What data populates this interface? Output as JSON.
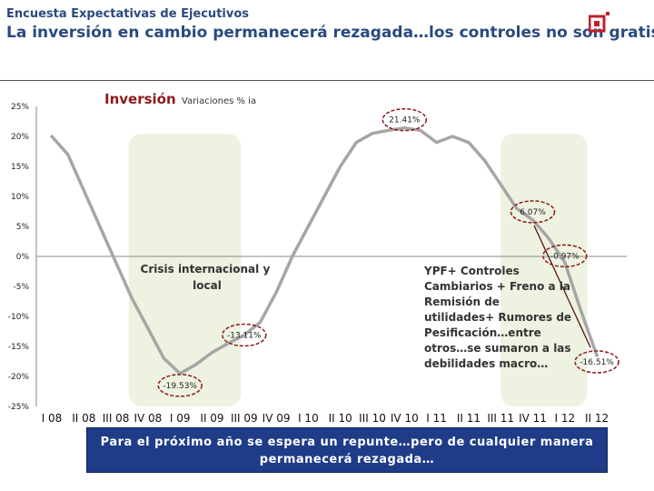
{
  "header": {
    "supertitle": "Encuesta Expectativas de Ejecutivos",
    "title": "La inversión en cambio permanecerá rezagada…los controles no son gratis…"
  },
  "chart_data": {
    "type": "line",
    "title": "Inversión",
    "subtitle": "Variaciones % ia",
    "categories": [
      "I 08",
      "II 08",
      "III 08",
      "IV 08",
      "I 09",
      "II 09",
      "III 09",
      "IV 09",
      "I 10",
      "II 10",
      "III 10",
      "IV 10",
      "I 11",
      "II 11",
      "III 11",
      "IV 11",
      "I 12",
      "II 12"
    ],
    "x": [
      0,
      0.5,
      1,
      1.5,
      2,
      2.5,
      3,
      3.5,
      4,
      4.5,
      5,
      5.5,
      6,
      6.5,
      7,
      7.5,
      8,
      8.5,
      9,
      9.5,
      10,
      10.5,
      11,
      11.5,
      12,
      12.5,
      13,
      13.5,
      14,
      14.5,
      15,
      15.5,
      16,
      16.5,
      17
    ],
    "values": [
      20,
      17,
      11,
      5,
      -1,
      -7,
      -12,
      -17,
      -19.53,
      -18,
      -16,
      -14.5,
      -13.11,
      -11,
      -6,
      0,
      5,
      10,
      15,
      19,
      20.5,
      21,
      21.41,
      21,
      19,
      20,
      19,
      16,
      12,
      8,
      6.07,
      3,
      -0.97,
      -9,
      -16.51
    ],
    "ylim": [
      -25,
      25
    ],
    "yticks": [
      25,
      20,
      15,
      10,
      5,
      0,
      -5,
      -10,
      -15,
      -20,
      -25
    ],
    "ytick_labels": [
      "25%",
      "20%",
      "15%",
      "10%",
      "5%",
      "0%",
      "-5%",
      "-10%",
      "-15%",
      "-20%",
      "-25%"
    ],
    "data_labels": [
      {
        "label": "21.41%",
        "x": 11,
        "y": 21.41
      },
      {
        "label": "6.07%",
        "x": 15,
        "y": 6.07
      },
      {
        "label": "-0.97%",
        "x": 16,
        "y": -0.97
      },
      {
        "label": "-16.51%",
        "x": 17,
        "y": -16.51
      },
      {
        "label": "-13.11%",
        "x": 6,
        "y": -13.11
      },
      {
        "label": "-19.53%",
        "x": 4,
        "y": -19.53
      }
    ],
    "shaded_periods": [
      [
        2.4,
        5.9
      ],
      [
        14.0,
        16.7
      ]
    ],
    "annotations": [
      {
        "text": [
          "Crisis internacional y",
          "local"
        ]
      },
      {
        "text": [
          "YPF+ Controles",
          "Cambiarios + Freno a la",
          "Remisión de",
          "utilidades+ Rumores de",
          "Pesificación…entre",
          "otros…se sumaron a las",
          "debilidades macro…"
        ]
      }
    ],
    "line_color": "#a6a6a6",
    "shade_color": "#eef2e0",
    "circle_color": "#8b1a1a"
  },
  "footer": {
    "banner_line1": "Para el próximo año se espera un repunte…pero de cualquier manera",
    "banner_line2": "permanecerá rezagada…"
  }
}
